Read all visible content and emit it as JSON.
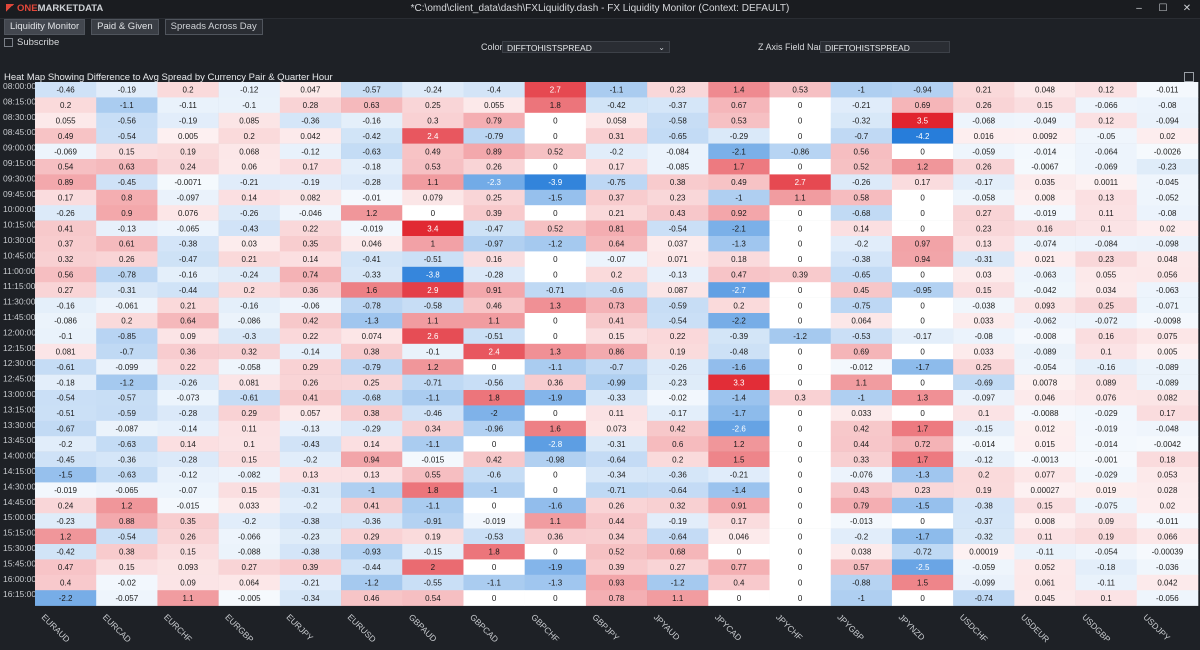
{
  "app": {
    "logo_one": "ONE",
    "logo_rest": "MARKETDATA",
    "window_title": "*C:\\omd\\client_data\\dash\\FXLiquidity.dash - FX Liquidity Monitor (Context: DEFAULT)",
    "window_buttons": [
      "–",
      "☐",
      "✕"
    ]
  },
  "tabs": [
    {
      "label": "Liquidity Monitor",
      "state": "active"
    },
    {
      "label": "Paid & Given",
      "state": "normal"
    },
    {
      "label": "Spreads Across Day",
      "state": "plain"
    }
  ],
  "toolbar": {
    "subscribe_label": "Subscribe",
    "color_label": "Color",
    "color_value": "DIFFTOHISTSPREAD",
    "zaxis_label": "Z Axis Field Name",
    "zaxis_value": "DIFFTOHISTSPREAD"
  },
  "heatmap": {
    "title": "Heat Map Showing Difference to Avg Spread by Currency Pair & Quarter Hour"
  },
  "chart_data": {
    "type": "heatmap",
    "title": "Heat Map Showing Difference to Avg Spread by Currency Pair & Quarter Hour",
    "colors": {
      "positive": "#e0202a",
      "negative": "#1e78d8",
      "neutral": "#ffffff"
    },
    "color_range": [
      -4.2,
      3.5
    ],
    "columns": [
      "EURAUD",
      "EURCAD",
      "EURCHF",
      "EURGBP",
      "EURJPY",
      "EURUSD",
      "GBPAUD",
      "GBPCAD",
      "GBPCHF",
      "GBPJPY",
      "JPYAUD",
      "JPYCAD",
      "JPYCHF",
      "JPYGBP",
      "JPYNZD",
      "USDCHF",
      "USDEUR",
      "USDGBP",
      "USDJPY"
    ],
    "rows": [
      {
        "time": "08:00:00",
        "values": [
          "-0.46",
          "-0.19",
          "0.2",
          "-0.12",
          "0.047",
          "-0.57",
          "-0.24",
          "-0.4",
          "2.7",
          "-1.1",
          "0.23",
          "1.4",
          "0.53",
          "-1",
          "-0.94",
          "0.21",
          "0.048",
          "0.12",
          "-0.011"
        ]
      },
      {
        "time": "08:15:00",
        "values": [
          "0.2",
          "-1.1",
          "-0.11",
          "-0.1",
          "0.28",
          "0.63",
          "0.25",
          "0.055",
          "1.8",
          "-0.42",
          "-0.37",
          "0.67",
          "0",
          "-0.21",
          "0.69",
          "0.26",
          "0.15",
          "-0.066",
          "-0.08"
        ]
      },
      {
        "time": "08:30:00",
        "values": [
          "0.055",
          "-0.56",
          "-0.19",
          "0.085",
          "-0.36",
          "-0.16",
          "0.3",
          "0.79",
          "0",
          "0.058",
          "-0.58",
          "0.53",
          "0",
          "-0.32",
          "3.5",
          "-0.068",
          "-0.049",
          "0.12",
          "-0.094"
        ]
      },
      {
        "time": "08:45:00",
        "values": [
          "0.49",
          "-0.54",
          "0.005",
          "0.2",
          "0.042",
          "-0.42",
          "2.4",
          "-0.79",
          "0",
          "0.31",
          "-0.65",
          "-0.29",
          "0",
          "-0.7",
          "-4.2",
          "0.016",
          "0.0092",
          "-0.05",
          "0.02"
        ]
      },
      {
        "time": "09:00:00",
        "values": [
          "-0.069",
          "0.15",
          "0.19",
          "0.068",
          "-0.12",
          "-0.63",
          "0.49",
          "0.89",
          "0.52",
          "-0.2",
          "-0.084",
          "-2.1",
          "-0.86",
          "0.56",
          "0",
          "-0.059",
          "-0.014",
          "-0.064",
          "-0.0026"
        ]
      },
      {
        "time": "09:15:00",
        "values": [
          "0.54",
          "0.63",
          "0.24",
          "0.06",
          "0.17",
          "-0.18",
          "0.53",
          "0.26",
          "0",
          "0.17",
          "-0.085",
          "1.7",
          "0",
          "0.52",
          "1.2",
          "0.26",
          "-0.0067",
          "-0.069",
          "-0.23"
        ]
      },
      {
        "time": "09:30:00",
        "values": [
          "0.89",
          "-0.45",
          "-0.0071",
          "-0.21",
          "-0.19",
          "-0.28",
          "1.1",
          "-2.3",
          "-3.9",
          "-0.75",
          "0.38",
          "0.49",
          "2.7",
          "-0.26",
          "0.17",
          "-0.17",
          "0.035",
          "0.0011",
          "-0.045"
        ]
      },
      {
        "time": "09:45:00",
        "values": [
          "0.17",
          "0.8",
          "-0.097",
          "0.14",
          "0.082",
          "-0.01",
          "0.079",
          "0.25",
          "-1.5",
          "0.37",
          "0.23",
          "-1",
          "1.1",
          "0.58",
          "0",
          "-0.058",
          "0.008",
          "0.13",
          "-0.052"
        ]
      },
      {
        "time": "10:00:00",
        "values": [
          "-0.26",
          "0.9",
          "0.076",
          "-0.26",
          "-0.046",
          "1.2",
          "0",
          "0.39",
          "0",
          "0.21",
          "0.43",
          "0.92",
          "0",
          "-0.68",
          "0",
          "0.27",
          "-0.019",
          "0.11",
          "-0.08"
        ]
      },
      {
        "time": "10:15:00",
        "values": [
          "0.41",
          "-0.13",
          "-0.065",
          "-0.43",
          "0.22",
          "-0.019",
          "3.4",
          "-0.47",
          "0.52",
          "0.81",
          "-0.54",
          "-2.1",
          "0",
          "0.14",
          "0",
          "0.23",
          "0.16",
          "0.1",
          "0.02"
        ]
      },
      {
        "time": "10:30:00",
        "values": [
          "0.37",
          "0.61",
          "-0.38",
          "0.03",
          "0.35",
          "0.046",
          "1",
          "-0.97",
          "-1.2",
          "0.64",
          "0.037",
          "-1.3",
          "0",
          "-0.2",
          "0.97",
          "0.13",
          "-0.074",
          "-0.084",
          "-0.098"
        ]
      },
      {
        "time": "10:45:00",
        "values": [
          "0.32",
          "0.26",
          "-0.47",
          "0.21",
          "0.14",
          "-0.41",
          "-0.51",
          "0.16",
          "0",
          "-0.07",
          "0.071",
          "0.18",
          "0",
          "-0.38",
          "0.94",
          "-0.31",
          "0.021",
          "0.23",
          "0.048"
        ]
      },
      {
        "time": "11:00:00",
        "values": [
          "0.56",
          "-0.78",
          "-0.16",
          "-0.24",
          "0.74",
          "-0.33",
          "-3.8",
          "-0.28",
          "0",
          "0.2",
          "-0.13",
          "0.47",
          "0.39",
          "-0.65",
          "0",
          "0.03",
          "-0.063",
          "0.055",
          "0.056"
        ]
      },
      {
        "time": "11:15:00",
        "values": [
          "0.27",
          "-0.31",
          "-0.44",
          "0.2",
          "0.36",
          "1.6",
          "2.9",
          "0.91",
          "-0.71",
          "-0.6",
          "0.087",
          "-2.7",
          "0",
          "0.45",
          "-0.95",
          "0.15",
          "-0.042",
          "0.034",
          "-0.063"
        ]
      },
      {
        "time": "11:30:00",
        "values": [
          "-0.16",
          "-0.061",
          "0.21",
          "-0.16",
          "-0.06",
          "-0.78",
          "-0.58",
          "0.46",
          "1.3",
          "0.73",
          "-0.59",
          "0.2",
          "0",
          "-0.75",
          "0",
          "-0.038",
          "0.093",
          "0.25",
          "-0.071"
        ]
      },
      {
        "time": "11:45:00",
        "values": [
          "-0.086",
          "0.2",
          "0.64",
          "-0.086",
          "0.42",
          "-1.3",
          "1.1",
          "1.1",
          "0",
          "0.41",
          "-0.54",
          "-2.2",
          "0",
          "0.064",
          "0",
          "0.033",
          "-0.062",
          "-0.072",
          "-0.0098"
        ]
      },
      {
        "time": "12:00:00",
        "values": [
          "-0.1",
          "-0.85",
          "0.09",
          "-0.3",
          "0.22",
          "0.074",
          "2.6",
          "-0.51",
          "0",
          "0.15",
          "0.22",
          "-0.39",
          "-1.2",
          "-0.53",
          "-0.17",
          "-0.08",
          "-0.008",
          "0.16",
          "0.075"
        ]
      },
      {
        "time": "12:15:00",
        "values": [
          "0.081",
          "-0.7",
          "0.36",
          "0.32",
          "-0.14",
          "0.38",
          "-0.1",
          "2.4",
          "1.3",
          "0.86",
          "0.19",
          "-0.48",
          "0",
          "0.69",
          "0",
          "0.033",
          "-0.089",
          "0.1",
          "0.005"
        ]
      },
      {
        "time": "12:30:00",
        "values": [
          "-0.61",
          "-0.099",
          "0.22",
          "-0.058",
          "0.29",
          "-0.79",
          "1.2",
          "0",
          "-1.1",
          "-0.7",
          "-0.26",
          "-1.6",
          "0",
          "-0.012",
          "-1.7",
          "0.25",
          "-0.054",
          "-0.16",
          "-0.089"
        ]
      },
      {
        "time": "12:45:00",
        "values": [
          "-0.18",
          "-1.2",
          "-0.26",
          "0.081",
          "0.26",
          "0.25",
          "-0.71",
          "-0.56",
          "0.36",
          "-0.99",
          "-0.23",
          "3.3",
          "0",
          "1.1",
          "0",
          "-0.69",
          "0.0078",
          "0.089",
          "-0.089"
        ]
      },
      {
        "time": "13:00:00",
        "values": [
          "-0.54",
          "-0.57",
          "-0.073",
          "-0.61",
          "0.41",
          "-0.68",
          "-1.1",
          "1.8",
          "-1.9",
          "-0.33",
          "-0.02",
          "-1.4",
          "0.3",
          "-1",
          "1.3",
          "-0.097",
          "0.046",
          "0.076",
          "0.082"
        ]
      },
      {
        "time": "13:15:00",
        "values": [
          "-0.51",
          "-0.59",
          "-0.28",
          "0.29",
          "0.057",
          "0.38",
          "-0.46",
          "-2",
          "0",
          "0.11",
          "-0.17",
          "-1.7",
          "0",
          "0.033",
          "0",
          "0.1",
          "-0.0088",
          "-0.029",
          "0.17"
        ]
      },
      {
        "time": "13:30:00",
        "values": [
          "-0.67",
          "-0.087",
          "-0.14",
          "0.11",
          "-0.13",
          "-0.29",
          "0.34",
          "-0.96",
          "1.6",
          "0.073",
          "0.42",
          "-2.6",
          "0",
          "0.42",
          "1.7",
          "-0.15",
          "0.012",
          "-0.019",
          "-0.048"
        ]
      },
      {
        "time": "13:45:00",
        "values": [
          "-0.2",
          "-0.63",
          "0.14",
          "0.1",
          "-0.43",
          "0.14",
          "-1.1",
          "0",
          "-2.8",
          "-0.31",
          "0.6",
          "1.2",
          "0",
          "0.44",
          "0.72",
          "-0.014",
          "0.015",
          "-0.014",
          "-0.0042"
        ]
      },
      {
        "time": "14:00:00",
        "values": [
          "-0.45",
          "-0.36",
          "-0.28",
          "0.15",
          "-0.2",
          "0.94",
          "-0.015",
          "0.42",
          "-0.98",
          "-0.64",
          "0.2",
          "1.5",
          "0",
          "0.33",
          "1.7",
          "-0.12",
          "-0.0013",
          "-0.001",
          "0.18"
        ]
      },
      {
        "time": "14:15:00",
        "values": [
          "-1.5",
          "-0.63",
          "-0.12",
          "-0.082",
          "0.13",
          "0.13",
          "0.55",
          "-0.6",
          "0",
          "-0.34",
          "-0.36",
          "-0.21",
          "0",
          "-0.076",
          "-1.3",
          "0.2",
          "0.077",
          "-0.029",
          "0.053"
        ]
      },
      {
        "time": "14:30:00",
        "values": [
          "-0.019",
          "-0.065",
          "-0.07",
          "0.15",
          "-0.31",
          "-1",
          "1.8",
          "-1",
          "0",
          "-0.71",
          "-0.64",
          "-1.4",
          "0",
          "0.43",
          "0.23",
          "0.19",
          "0.00027",
          "0.019",
          "0.028"
        ]
      },
      {
        "time": "14:45:00",
        "values": [
          "0.24",
          "1.2",
          "-0.015",
          "0.033",
          "-0.2",
          "0.41",
          "-1.1",
          "0",
          "-1.6",
          "0.26",
          "0.32",
          "0.91",
          "0",
          "0.79",
          "-1.5",
          "-0.38",
          "0.15",
          "-0.075",
          "0.02"
        ]
      },
      {
        "time": "15:00:00",
        "values": [
          "-0.23",
          "0.88",
          "0.35",
          "-0.2",
          "-0.38",
          "-0.36",
          "-0.91",
          "-0.019",
          "1.1",
          "0.44",
          "-0.19",
          "0.17",
          "0",
          "-0.013",
          "0",
          "-0.37",
          "0.008",
          "0.09",
          "-0.011"
        ]
      },
      {
        "time": "15:15:00",
        "values": [
          "1.2",
          "-0.54",
          "0.26",
          "-0.066",
          "-0.23",
          "0.29",
          "0.19",
          "-0.53",
          "0.36",
          "0.34",
          "-0.64",
          "0.046",
          "0",
          "-0.2",
          "-1.7",
          "-0.32",
          "0.11",
          "0.19",
          "0.066"
        ]
      },
      {
        "time": "15:30:00",
        "values": [
          "-0.42",
          "0.38",
          "0.15",
          "-0.088",
          "-0.38",
          "-0.93",
          "-0.15",
          "1.8",
          "0",
          "0.52",
          "0.68",
          "0",
          "0",
          "0.038",
          "-0.72",
          "0.00019",
          "-0.11",
          "-0.054",
          "-0.00039"
        ]
      },
      {
        "time": "15:45:00",
        "values": [
          "0.47",
          "0.15",
          "0.093",
          "0.27",
          "0.39",
          "-0.44",
          "2",
          "0",
          "-1.9",
          "0.39",
          "0.27",
          "0.77",
          "0",
          "0.57",
          "-2.5",
          "-0.059",
          "0.052",
          "-0.18",
          "-0.036"
        ]
      },
      {
        "time": "16:00:00",
        "values": [
          "0.4",
          "-0.02",
          "0.09",
          "0.064",
          "-0.21",
          "-1.2",
          "-0.55",
          "-1.1",
          "-1.3",
          "0.93",
          "-1.2",
          "0.4",
          "0",
          "-0.88",
          "1.5",
          "-0.099",
          "0.061",
          "-0.11",
          "0.042"
        ]
      },
      {
        "time": "16:15:00",
        "values": [
          "-2.2",
          "-0.057",
          "1.1",
          "-0.005",
          "-0.34",
          "0.46",
          "0.54",
          "0",
          "0",
          "0.78",
          "1.1",
          "0",
          "0",
          "-1",
          "0",
          "-0.74",
          "0.045",
          "0.1",
          "-0.056"
        ]
      }
    ]
  }
}
